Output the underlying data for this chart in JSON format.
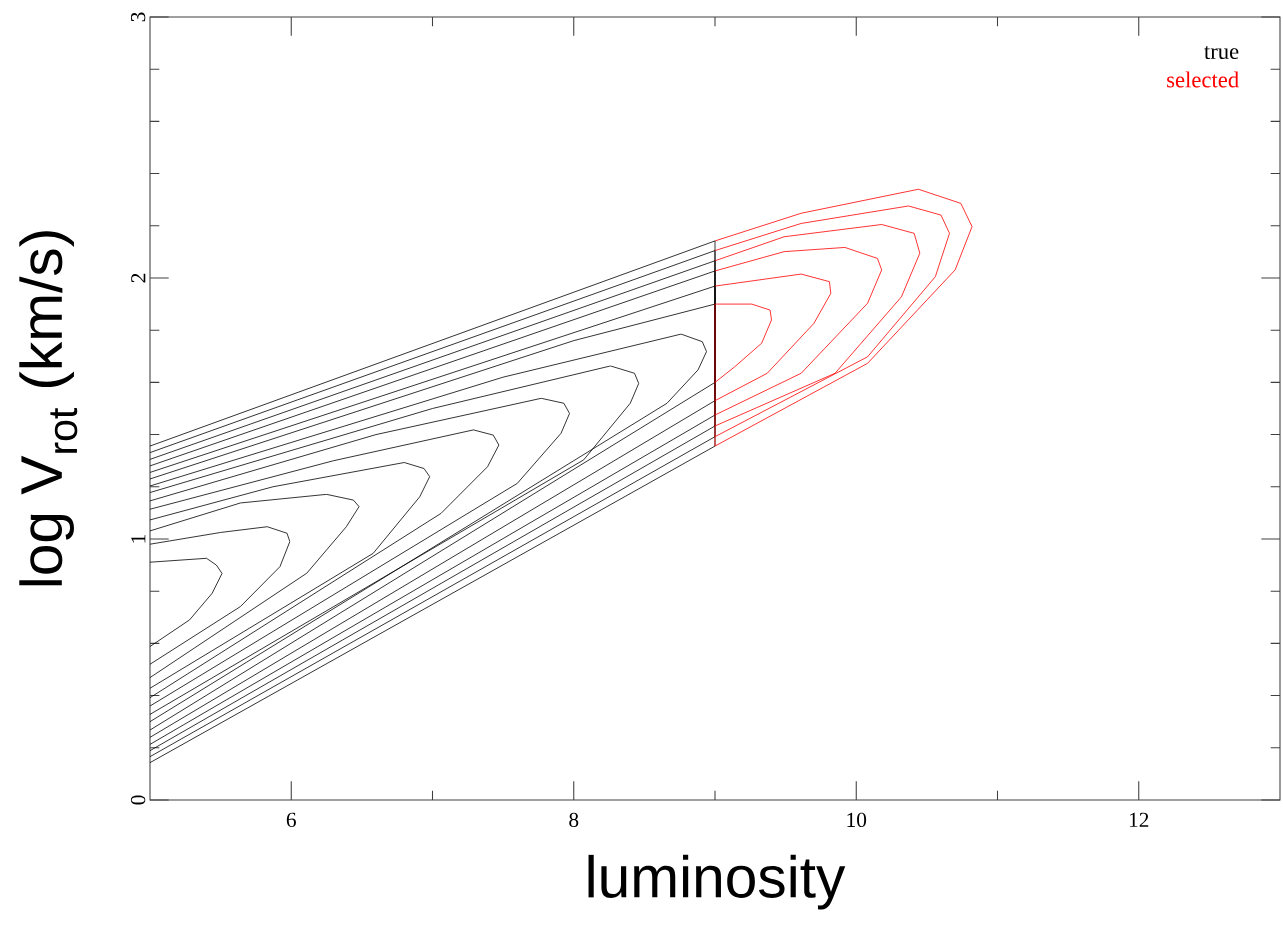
{
  "chart_data": {
    "type": "line",
    "xlabel": "luminosity",
    "ylabel": "log V$_{rot}$ (km/s)",
    "xlim": [
      5,
      13
    ],
    "ylim": [
      0,
      3
    ],
    "xticks": [
      6,
      {
        "value": 7,
        "label": null
      },
      8,
      {
        "value": 9,
        "label": null
      },
      10,
      {
        "value": 11,
        "label": null
      },
      12
    ],
    "yticks": [
      0,
      {
        "value": 0.2,
        "label": null
      },
      {
        "value": 0.4,
        "label": null
      },
      {
        "value": 0.6,
        "label": null
      },
      {
        "value": 0.8,
        "label": null
      },
      1,
      {
        "value": 1.2,
        "label": null
      },
      {
        "value": 1.4,
        "label": null
      },
      {
        "value": 1.6,
        "label": null
      },
      {
        "value": 1.8,
        "label": null
      },
      2,
      {
        "value": 2.2,
        "label": null
      },
      {
        "value": 2.4,
        "label": null
      },
      {
        "value": 2.6,
        "label": null
      },
      {
        "value": 2.8,
        "label": null
      },
      3
    ],
    "legend": "top right",
    "marker": "none",
    "line_style": "solid",
    "grid": false,
    "series": [
      {
        "name": "true",
        "color": "#000000",
        "x": [
          5,
          5.4,
          5.47,
          5.51,
          5.44,
          5.28,
          5
        ],
        "values": [
          0.911,
          0.926,
          0.9,
          0.868,
          0.792,
          0.69,
          0.588
        ]
      },
      {
        "color": "#000000",
        "x": [
          5,
          5.5,
          5.83,
          5.97,
          5.99,
          5.92,
          5.64,
          5
        ],
        "values": [
          0.98,
          1.025,
          1.047,
          1.022,
          0.99,
          0.894,
          0.741,
          0.52
        ]
      },
      {
        "color": "#000000",
        "x": [
          5,
          5.64,
          6.25,
          6.44,
          6.48,
          6.39,
          6.11,
          5
        ],
        "values": [
          1.031,
          1.138,
          1.171,
          1.149,
          1.124,
          1.047,
          0.869,
          0.469
        ]
      },
      {
        "color": "#000000",
        "x": [
          5,
          5.87,
          6.8,
          6.94,
          6.98,
          6.91,
          6.58,
          5
        ],
        "values": [
          1.073,
          1.2,
          1.293,
          1.27,
          1.239,
          1.162,
          0.945,
          0.428
        ]
      },
      {
        "color": "#000000",
        "x": [
          5,
          6.3,
          7.29,
          7.43,
          7.47,
          7.39,
          7.06,
          5
        ],
        "values": [
          1.114,
          1.3,
          1.418,
          1.398,
          1.36,
          1.277,
          1.098,
          0.392
        ]
      },
      {
        "color": "#000000",
        "x": [
          5,
          6.6,
          7.77,
          7.93,
          7.97,
          7.91,
          7.6,
          5
        ],
        "values": [
          1.146,
          1.4,
          1.539,
          1.52,
          1.481,
          1.405,
          1.213,
          0.36
        ]
      },
      {
        "color": "#000000",
        "x": [
          5,
          7.0,
          8.26,
          8.43,
          8.46,
          8.4,
          8.07,
          5
        ],
        "values": [
          1.178,
          1.5,
          1.663,
          1.635,
          1.596,
          1.52,
          1.303,
          0.328
        ]
      },
      {
        "color": "#000000",
        "x": [
          5,
          7.5,
          8.76,
          8.91,
          8.94,
          8.88,
          8.66,
          5
        ],
        "values": [
          1.203,
          1.62,
          1.785,
          1.756,
          1.718,
          1.648,
          1.52,
          0.3
        ]
      },
      {
        "color": "#000000",
        "x": [
          5,
          8.0,
          9,
          9,
          5
        ],
        "values": [
          1.23,
          1.76,
          1.9,
          1.6,
          0.268
        ]
      },
      {
        "color": "#000000",
        "x": [
          5,
          9,
          9,
          5
        ],
        "values": [
          1.255,
          1.969,
          1.53,
          0.24
        ]
      },
      {
        "color": "#000000",
        "x": [
          5,
          9,
          9,
          5
        ],
        "values": [
          1.28,
          2.027,
          1.475,
          0.213
        ]
      },
      {
        "color": "#000000",
        "x": [
          5,
          9,
          9,
          5
        ],
        "values": [
          1.305,
          2.066,
          1.433,
          0.189
        ]
      },
      {
        "color": "#000000",
        "x": [
          5,
          9,
          9,
          5
        ],
        "values": [
          1.331,
          2.105,
          1.392,
          0.166
        ]
      },
      {
        "color": "#000000",
        "x": [
          5,
          9,
          9,
          5
        ],
        "values": [
          1.356,
          2.142,
          1.356,
          0.143
        ]
      },
      {
        "name": "selected",
        "color": "#ff0000",
        "x": [
          9,
          9.26,
          9.39,
          9.4,
          9.33,
          9.14,
          9
        ],
        "values": [
          1.9,
          1.9,
          1.877,
          1.839,
          1.75,
          1.66,
          1.6
        ]
      },
      {
        "color": "#ff0000",
        "x": [
          9,
          9.61,
          9.81,
          9.82,
          9.7,
          9.37,
          9
        ],
        "values": [
          1.969,
          2.015,
          1.986,
          1.941,
          1.826,
          1.635,
          1.53
        ]
      },
      {
        "color": "#ff0000",
        "x": [
          9,
          9.49,
          9.92,
          10.15,
          10.18,
          10.08,
          9.61,
          9
        ],
        "values": [
          2.027,
          2.101,
          2.117,
          2.075,
          2.031,
          1.903,
          1.635,
          1.475
        ]
      },
      {
        "color": "#ff0000",
        "x": [
          9,
          9.49,
          10.18,
          10.41,
          10.45,
          10.32,
          9.85,
          9
        ],
        "values": [
          2.066,
          2.158,
          2.205,
          2.171,
          2.095,
          1.928,
          1.635,
          1.433
        ]
      },
      {
        "color": "#ff0000",
        "x": [
          9,
          9.61,
          10.37,
          10.6,
          10.66,
          10.56,
          10.08,
          9
        ],
        "values": [
          2.105,
          2.209,
          2.276,
          2.241,
          2.171,
          2.005,
          1.698,
          1.392
        ]
      },
      {
        "color": "#ff0000",
        "x": [
          9,
          9.61,
          10.44,
          10.74,
          10.82,
          10.7,
          10.08,
          9
        ],
        "values": [
          2.142,
          2.248,
          2.34,
          2.286,
          2.197,
          2.031,
          1.673,
          1.356
        ]
      },
      {
        "color": "#ff0000",
        "x": [
          9,
          9
        ],
        "values": [
          1.356,
          1.9
        ]
      }
    ]
  }
}
